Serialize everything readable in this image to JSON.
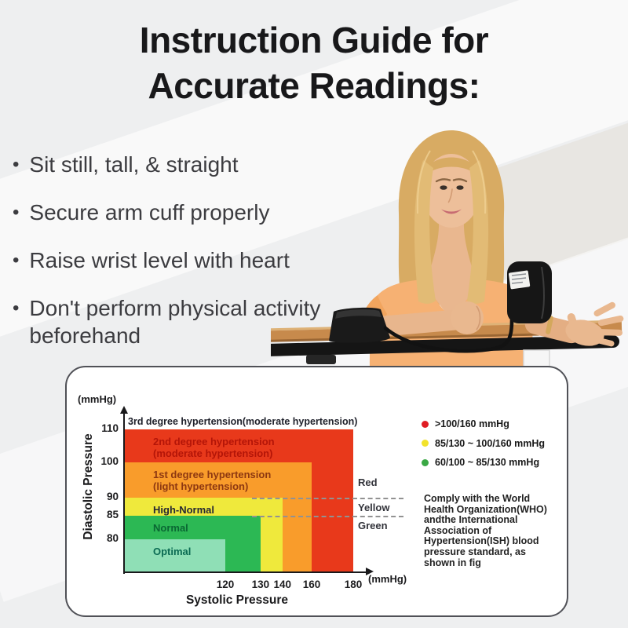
{
  "header": {
    "title_line1": "Instruction Guide for",
    "title_line2": "Accurate Readings:"
  },
  "instructions": [
    "Sit still, tall, & straight",
    "Secure arm cuff properly",
    "Raise wrist level with heart",
    "Don't perform physical activity beforehand"
  ],
  "colors": {
    "zone_red": "#e8391b",
    "zone_orange": "#f99c2b",
    "zone_yellow": "#efe93c",
    "zone_green": "#2cb854",
    "zone_mint": "#8fdfb6"
  },
  "chart_data": {
    "type": "area",
    "xlabel": "Systolic Pressure",
    "ylabel": "Diastolic Pressure",
    "x_unit": "(mmHg)",
    "y_unit": "(mmHg)",
    "x_ticks": [
      {
        "label": "120",
        "f": 0.44
      },
      {
        "label": "130",
        "f": 0.594
      },
      {
        "label": "140",
        "f": 0.69
      },
      {
        "label": "160",
        "f": 0.818
      },
      {
        "label": "180",
        "f": 1.0
      }
    ],
    "y_ticks": [
      {
        "label": "110",
        "f": 1.0
      },
      {
        "label": "100",
        "f": 0.77
      },
      {
        "label": "90",
        "f": 0.52
      },
      {
        "label": "85",
        "f": 0.395
      },
      {
        "label": "80",
        "f": 0.23
      }
    ],
    "top_label": "3rd degree hypertension(moderate hypertension)",
    "zones": [
      {
        "name": "2nd-degree-hypertension",
        "label_lines": [
          "2nd degree hypertension",
          "(moderate hypertension)"
        ],
        "x_to": "180",
        "y_to": "110",
        "fx": 1.0,
        "fy": 1.0,
        "fill": "#e8391b",
        "text_color": "#b41508"
      },
      {
        "name": "1st-degree-hypertension",
        "label_lines": [
          "1st degree hypertension",
          "(light hypertension)"
        ],
        "x_to": "160",
        "y_to": "100",
        "fx": 0.818,
        "fy": 0.77,
        "fill": "#f99c2b",
        "text_color": "#8d3811"
      },
      {
        "name": "high-normal",
        "label_lines": [
          "High-Normal"
        ],
        "x_to": "140",
        "y_to": "90",
        "fx": 0.69,
        "fy": 0.52,
        "fill": "#efe93c",
        "text_color": "#262833"
      },
      {
        "name": "normal",
        "label_lines": [
          "Normal"
        ],
        "x_to": "130",
        "y_to": "85",
        "fx": 0.594,
        "fy": 0.395,
        "fill": "#2cb854",
        "text_color": "#0a6733"
      },
      {
        "name": "optimal",
        "label_lines": [
          "Optimal"
        ],
        "x_to": "120",
        "y_to": "80",
        "fx": 0.44,
        "fy": 0.23,
        "fill": "#8fdfb6",
        "text_color": "#0a6a52"
      }
    ],
    "dash_lines": [
      {
        "fy": 0.52
      },
      {
        "fy": 0.395
      }
    ],
    "category_labels": [
      {
        "label": "Red"
      },
      {
        "label": "Yellow"
      },
      {
        "label": "Green"
      }
    ],
    "legend": [
      {
        "color": "#e01d24",
        "label": ">100/160 mmHg"
      },
      {
        "color": "#f2e32c",
        "label": "85/130 ~ 100/160 mmHg"
      },
      {
        "color": "#3aa845",
        "label": "60/100 ~ 85/130 mmHg"
      }
    ],
    "note_lines": [
      "Comply with the World",
      "Health Organization(WHO)",
      "andthe International",
      "Association of",
      "Hypertension(ISH) blood",
      "pressure standard, as",
      "shown in fig"
    ]
  }
}
